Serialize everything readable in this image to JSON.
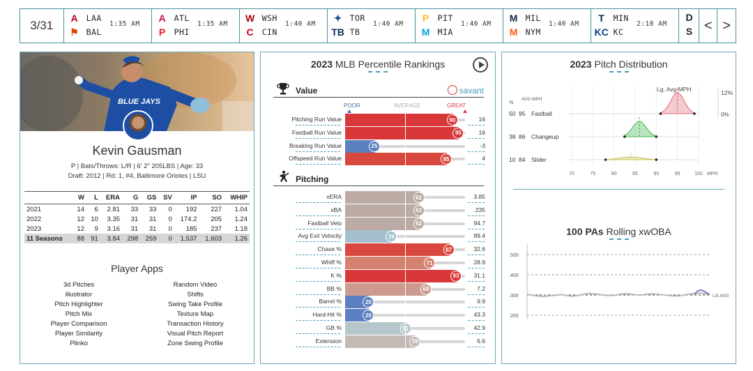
{
  "scoreboard": {
    "date": "3/31",
    "games": [
      {
        "away": "LAA",
        "home": "BAL",
        "time": "1:35 AM",
        "away_color": "#ba0021",
        "home_color": "#df4601",
        "away_glyph": "A",
        "home_glyph": "⚑"
      },
      {
        "away": "ATL",
        "home": "PHI",
        "time": "1:35 AM",
        "away_color": "#ce1141",
        "home_color": "#e81828",
        "away_glyph": "A",
        "home_glyph": "P"
      },
      {
        "away": "WSH",
        "home": "CIN",
        "time": "1:40 AM",
        "away_color": "#ab0003",
        "home_color": "#c6011f",
        "away_glyph": "W",
        "home_glyph": "C"
      },
      {
        "away": "TOR",
        "home": "TB",
        "time": "1:40 AM",
        "away_color": "#134a8e",
        "home_color": "#092c5c",
        "away_glyph": "✦",
        "home_glyph": "TB"
      },
      {
        "away": "PIT",
        "home": "MIA",
        "time": "1:40 AM",
        "away_color": "#fdb827",
        "home_color": "#00a3e0",
        "away_glyph": "P",
        "home_glyph": "M"
      },
      {
        "away": "MIL",
        "home": "NYM",
        "time": "1:40 AM",
        "away_color": "#12284b",
        "home_color": "#ff5910",
        "away_glyph": "M",
        "home_glyph": "M"
      },
      {
        "away": "MIN",
        "home": "KC",
        "time": "2:10 AM",
        "away_color": "#002b5c",
        "home_color": "#004687",
        "away_glyph": "T",
        "home_glyph": "KC"
      }
    ],
    "last_game": {
      "away_color": "#0c2340",
      "home_color": "#27251f",
      "away_glyph": "D",
      "home_glyph": "S"
    },
    "prev": "<",
    "next": ">"
  },
  "player": {
    "name": "Kevin Gausman",
    "info1": "P | Bats/Throws: L/R | 6' 2\" 205LBS | Age: 33",
    "draft_prefix": "Draft: ",
    "draft_year": "2012",
    "draft_mid": " | Rd: 1, #4, ",
    "draft_team": "Baltimore Orioles",
    "draft_suffix": " | LSU",
    "headers": [
      "",
      "W",
      "L",
      "ERA",
      "G",
      "GS",
      "SV",
      "IP",
      "SO",
      "WHIP"
    ],
    "rows": [
      [
        "2021",
        "14",
        "6",
        "2.81",
        "33",
        "33",
        "0",
        "192",
        "227",
        "1.04"
      ],
      [
        "2022",
        "12",
        "10",
        "3.35",
        "31",
        "31",
        "0",
        "174.2",
        "205",
        "1.24"
      ],
      [
        "2023",
        "12",
        "9",
        "3.16",
        "31",
        "31",
        "0",
        "185",
        "237",
        "1.18"
      ]
    ],
    "total": [
      "11 Seasons",
      "88",
      "91",
      "3.84",
      "298",
      "259",
      "0",
      "1,537",
      "1,603",
      "1.26"
    ]
  },
  "apps": {
    "title": "Player Apps",
    "left": [
      "3d Pitches",
      "illustrator",
      "Pitch Highlighter",
      "Pitch Mix",
      "Player Comparison",
      "Player Similarity",
      "Plinko"
    ],
    "right": [
      "Random Video",
      "Shifts",
      "Swing Take Profile",
      "Texture Map",
      "Transaction History",
      "Visual Pitch Report",
      "Zone Swing Profile"
    ]
  },
  "percentile": {
    "title_year": "2023",
    "title_rest": " MLB Percentile Rankings",
    "value_label": "Value",
    "savant_label": "savant",
    "pitching_label": "Pitching",
    "scale": {
      "poor": "POOR",
      "average": "AVERAGE",
      "great": "GREAT"
    },
    "value_rows": [
      {
        "label": "Pitching Run Value",
        "pct": 90,
        "value": "16",
        "color": "#d9383a"
      },
      {
        "label": "Fastball Run Value",
        "pct": 95,
        "value": "16",
        "color": "#d9383a"
      },
      {
        "label": "Breaking Run Value",
        "pct": 25,
        "value": "-3",
        "color": "#5b7fbf"
      },
      {
        "label": "Offspeed Run Value",
        "pct": 85,
        "value": "4",
        "color": "#d9483e"
      }
    ],
    "pitching_rows": [
      {
        "label": "xERA",
        "pct": 62,
        "value": "3.85",
        "color": "#bcaaa4"
      },
      {
        "label": "xBA",
        "pct": 62,
        "value": ".235",
        "color": "#bcaaa4"
      },
      {
        "label": "Fastball Velo",
        "pct": 62,
        "value": "94.7",
        "color": "#bcaaa4"
      },
      {
        "label": "Avg Exit Velocity",
        "pct": 39,
        "value": "89.4",
        "color": "#a4bfcf"
      },
      {
        "label": "Chase %",
        "pct": 87,
        "value": "32.6",
        "color": "#d9483e"
      },
      {
        "label": "Whiff %",
        "pct": 71,
        "value": "28.9",
        "color": "#d4826f"
      },
      {
        "label": "K %",
        "pct": 93,
        "value": "31.1",
        "color": "#d9383a"
      },
      {
        "label": "BB %",
        "pct": 68,
        "value": "7.2",
        "color": "#cc9a8e"
      },
      {
        "label": "Barrel %",
        "pct": 20,
        "value": "9.9",
        "color": "#5b7fbf"
      },
      {
        "label": "Hard-Hit %",
        "pct": 20,
        "value": "43.3",
        "color": "#5b7fbf"
      },
      {
        "label": "GB %",
        "pct": 51,
        "value": "42.9",
        "color": "#b5c7ca"
      },
      {
        "label": "Extension",
        "pct": 59,
        "value": "6.6",
        "color": "#c3bab6"
      }
    ]
  },
  "pitch_dist": {
    "title_year": "2023",
    "title_rest": " Pitch Distribution",
    "lg_avg_label": "Lg. Avg MPH",
    "col_pct": "%",
    "col_mph": "AVG MPH",
    "pct_top": "12%",
    "pct_zero": "0%",
    "pitches": [
      {
        "pct": "50",
        "mph": "95",
        "name": "Fastball",
        "color": "#e06a7a"
      },
      {
        "pct": "38",
        "mph": "86",
        "name": "Changeup",
        "color": "#3cb54a"
      },
      {
        "pct": "10",
        "mph": "84",
        "name": "Slider",
        "color": "#c9c15a"
      }
    ],
    "x_ticks": [
      "70",
      "75",
      "80",
      "85",
      "90",
      "95",
      "100"
    ],
    "x_unit": "MPH"
  },
  "xwoba": {
    "title_bold": "100 PAs",
    "title_rest": " Rolling xwOBA",
    "y_ticks": [
      ".500",
      ".400",
      ".300",
      ".200"
    ],
    "lg_avg_label": "LG AVG"
  }
}
